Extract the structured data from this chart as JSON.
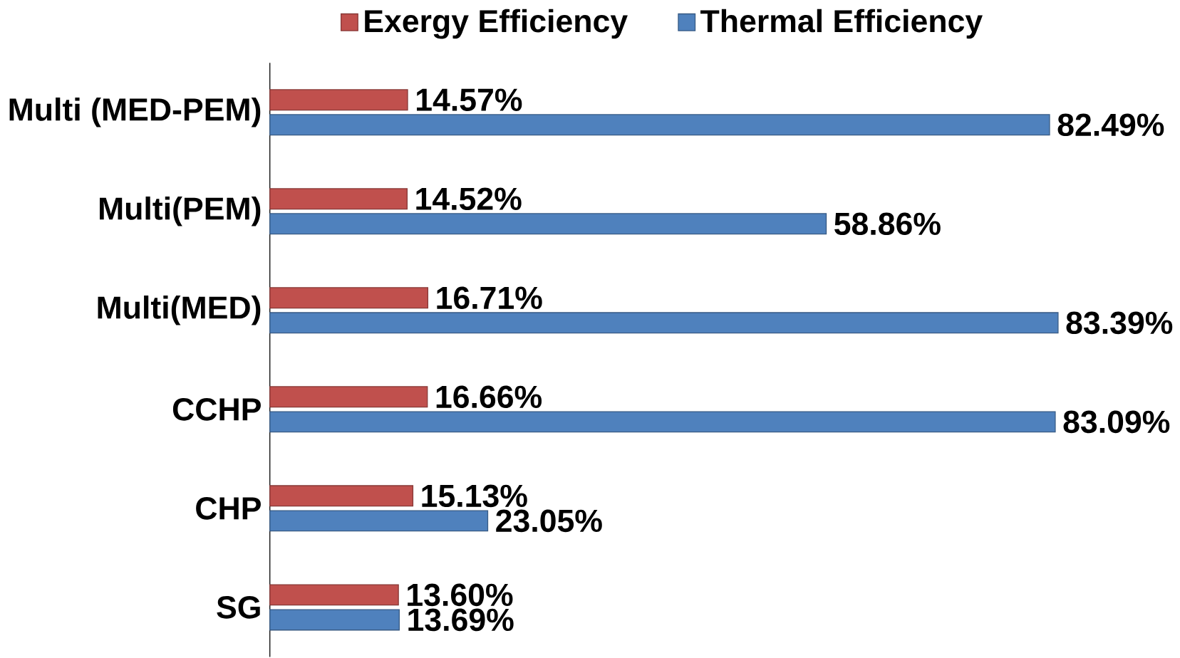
{
  "chart_data": {
    "type": "bar",
    "orientation": "horizontal",
    "legend": "top",
    "categories": [
      "Multi (MED-PEM)",
      "Multi(PEM)",
      "Multi(MED)",
      "CCHP",
      "CHP",
      "SG"
    ],
    "series": [
      {
        "name": "Exergy Efficiency",
        "color": "#c0504d",
        "values": [
          14.57,
          14.52,
          16.71,
          16.66,
          15.13,
          13.6
        ],
        "value_labels": [
          "14.57%",
          "14.52%",
          "16.71%",
          "16.66%",
          "15.13%",
          "13.60%"
        ]
      },
      {
        "name": "Thermal Efficiency",
        "color": "#4f81bd",
        "values": [
          82.49,
          58.86,
          83.39,
          83.09,
          23.05,
          13.69
        ],
        "value_labels": [
          "82.49%",
          "58.86%",
          "83.39%",
          "83.09%",
          "23.05%",
          "13.69%"
        ]
      }
    ]
  }
}
